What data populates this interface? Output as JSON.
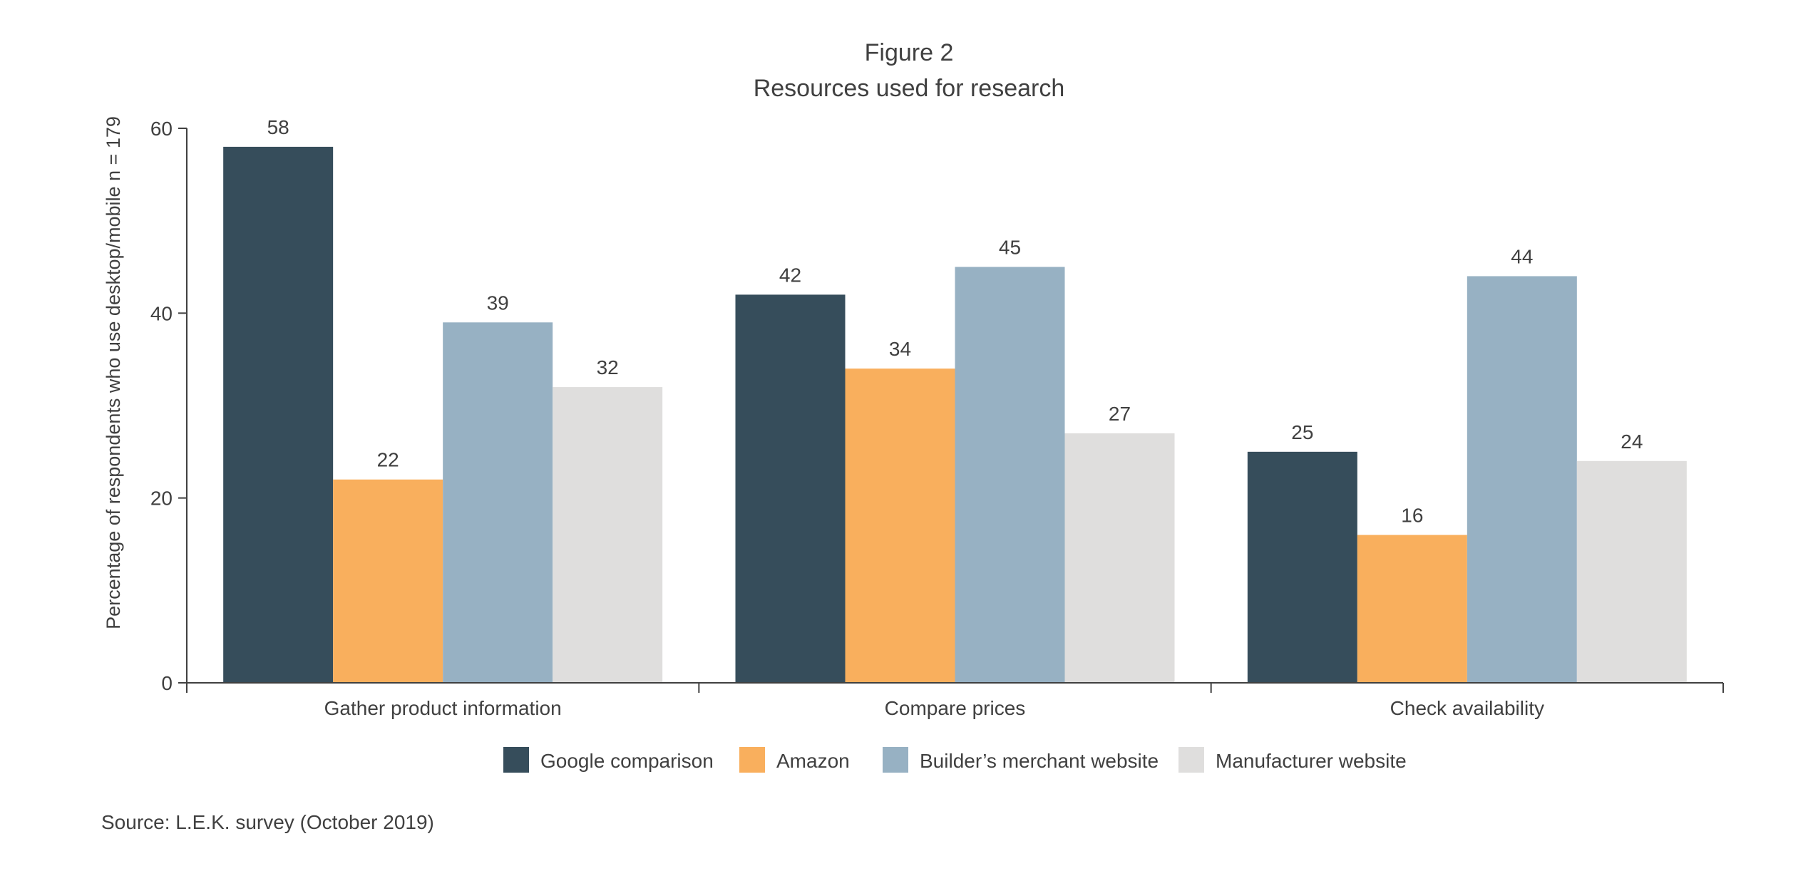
{
  "chart_data": {
    "type": "bar",
    "title": "Figure 2",
    "subtitle": "Resources used for research",
    "xlabel": "",
    "ylabel": "Percentage of respondents who use desktop/mobile n = 179",
    "ylim": [
      0,
      60
    ],
    "yticks": [
      0,
      20,
      40,
      60
    ],
    "grid": false,
    "legend_position": "bottom",
    "categories": [
      "Gather product information",
      "Compare prices",
      "Check availability"
    ],
    "series": [
      {
        "name": "Google comparison",
        "color": "#364d5b",
        "values": [
          58,
          42,
          25
        ]
      },
      {
        "name": "Amazon",
        "color": "#f9af5d",
        "values": [
          22,
          34,
          16
        ]
      },
      {
        "name": "Builder’s merchant website",
        "color": "#97b1c3",
        "values": [
          39,
          45,
          44
        ]
      },
      {
        "name": "Manufacturer website",
        "color": "#dfdedd",
        "values": [
          32,
          27,
          24
        ]
      }
    ],
    "source": "Source: L.E.K. survey (October 2019)"
  }
}
